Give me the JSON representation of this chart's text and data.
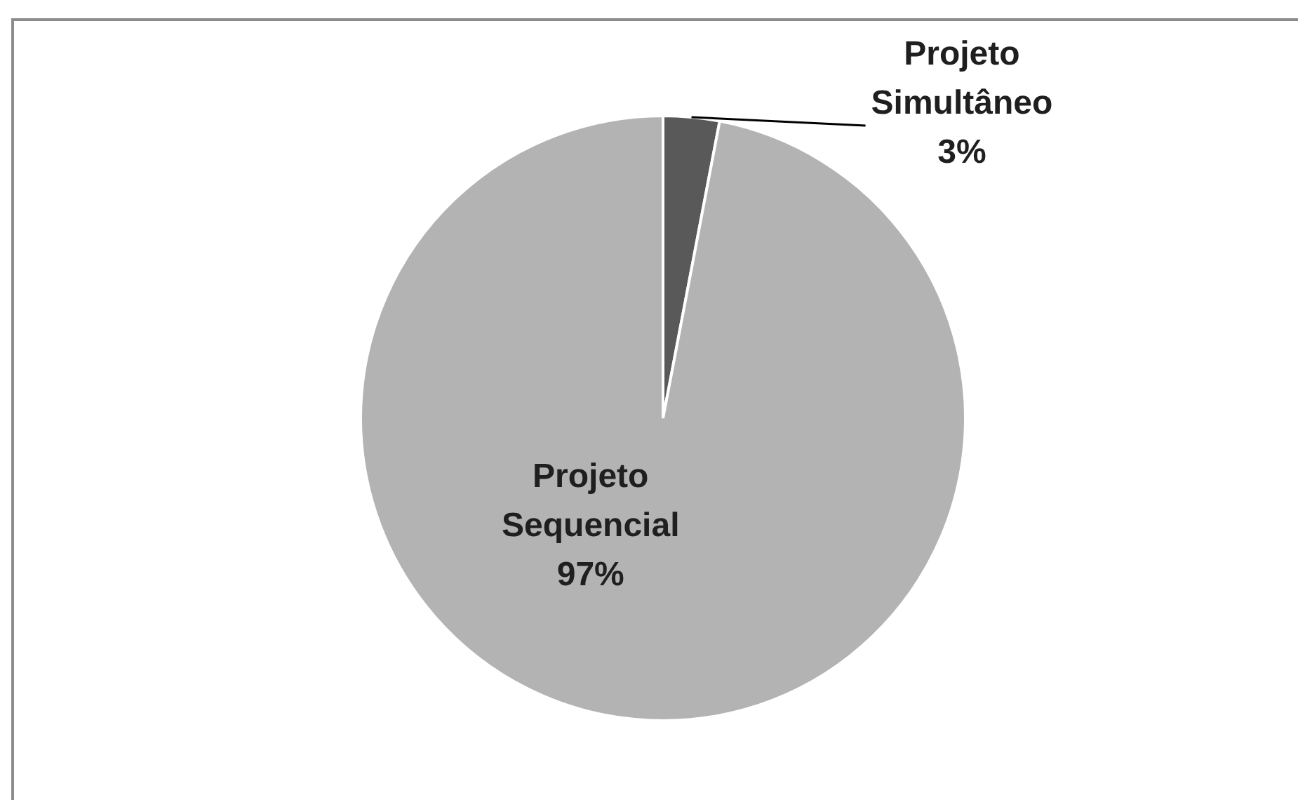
{
  "chart_data": {
    "type": "pie",
    "categories": [
      "Projeto Simultâneo",
      "Projeto Sequencial"
    ],
    "values": [
      3,
      97
    ],
    "colors": [
      "#595959",
      "#b3b3b3"
    ],
    "value_labels": [
      "3%",
      "97%"
    ],
    "legend": false
  }
}
